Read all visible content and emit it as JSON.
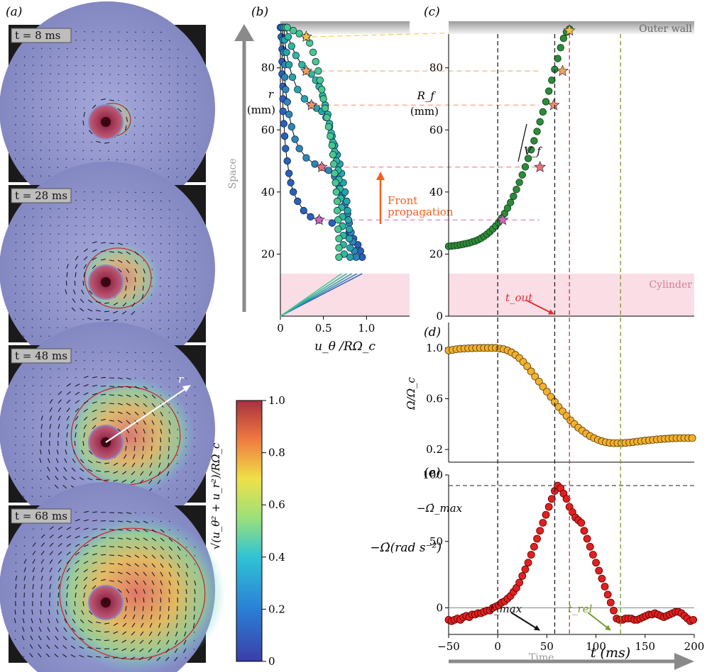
{
  "panel_labels": [
    "(a)",
    "(b)",
    "(c)",
    "(d)",
    "(e)"
  ],
  "snapshots": [
    {
      "label": "t = 8 ms",
      "front_radius": 0.12,
      "color_intensity": 0.35
    },
    {
      "label": "t = 28 ms",
      "front_radius": 0.22,
      "color_intensity": 0.55
    },
    {
      "label": "t = 48 ms",
      "front_radius": 0.36,
      "color_intensity": 0.7
    },
    {
      "label": "t = 68 ms",
      "front_radius": 0.48,
      "color_intensity": 0.8
    }
  ],
  "r_arrow_label": "r",
  "colorbar": {
    "ticks": [
      "1.0",
      "0.8",
      "0.6",
      "0.4",
      "0.2",
      "0"
    ],
    "label": "√(u_θ² + u_r²)/RΩ_c"
  },
  "annotations": {
    "space": "Space",
    "time": "Time",
    "outer_wall": "Outer wall",
    "cylinder": "Cylinder",
    "front_line1": "Front",
    "front_line2": "propagation",
    "t_out": "t_out",
    "t_max": "t_max",
    "t_rel": "t_rel",
    "v_f": "V_f",
    "omega_dot_max": "−Ω̇_max"
  },
  "chart_data": [
    {
      "panel": "(b)",
      "type": "scatter",
      "xlabel": "u_θ /RΩ_c",
      "ylabel": "r (mm)",
      "xlim": [
        0,
        1.5
      ],
      "ylim": [
        0,
        95
      ],
      "xticks": [
        "0",
        "0.5",
        "1.0"
      ],
      "yticks": [
        "20",
        "40",
        "60",
        "80"
      ],
      "profiles": [
        {
          "color": "#2b5fb8",
          "r_front": 31,
          "points": [
            [
              0.0,
              93
            ],
            [
              0.01,
              90
            ],
            [
              0.02,
              86
            ],
            [
              0.02,
              82
            ],
            [
              0.02,
              78
            ],
            [
              0.03,
              74
            ],
            [
              0.03,
              70
            ],
            [
              0.03,
              66
            ],
            [
              0.04,
              62
            ],
            [
              0.05,
              58
            ],
            [
              0.06,
              54
            ],
            [
              0.08,
              50
            ],
            [
              0.1,
              46
            ],
            [
              0.12,
              43
            ],
            [
              0.15,
              40
            ],
            [
              0.2,
              37
            ],
            [
              0.27,
              34
            ],
            [
              0.35,
              32
            ],
            [
              0.45,
              31
            ],
            [
              0.6,
              30
            ],
            [
              0.72,
              29
            ],
            [
              0.8,
              27
            ],
            [
              0.85,
              25
            ],
            [
              0.9,
              23
            ],
            [
              0.93,
              21
            ],
            [
              0.95,
              19
            ]
          ]
        },
        {
          "color": "#2f86b5",
          "r_front": 48,
          "points": [
            [
              0.02,
              93
            ],
            [
              0.03,
              89
            ],
            [
              0.04,
              85
            ],
            [
              0.05,
              81
            ],
            [
              0.05,
              77
            ],
            [
              0.06,
              73
            ],
            [
              0.08,
              69
            ],
            [
              0.1,
              65
            ],
            [
              0.13,
              61
            ],
            [
              0.17,
              57
            ],
            [
              0.22,
              54
            ],
            [
              0.3,
              51
            ],
            [
              0.4,
              49
            ],
            [
              0.48,
              48
            ],
            [
              0.56,
              47
            ],
            [
              0.63,
              45
            ],
            [
              0.68,
              42
            ],
            [
              0.72,
              39
            ],
            [
              0.75,
              36
            ],
            [
              0.78,
              33
            ],
            [
              0.8,
              30
            ],
            [
              0.82,
              27
            ],
            [
              0.84,
              24
            ],
            [
              0.86,
              21
            ],
            [
              0.88,
              19
            ]
          ]
        },
        {
          "color": "#28a5a7",
          "r_front": 68,
          "points": [
            [
              0.04,
              93
            ],
            [
              0.05,
              89
            ],
            [
              0.07,
              85
            ],
            [
              0.1,
              81
            ],
            [
              0.14,
              77
            ],
            [
              0.2,
              73
            ],
            [
              0.28,
              70
            ],
            [
              0.36,
              68
            ],
            [
              0.42,
              67
            ],
            [
              0.48,
              66
            ],
            [
              0.53,
              64
            ],
            [
              0.57,
              61
            ],
            [
              0.6,
              58
            ],
            [
              0.63,
              55
            ],
            [
              0.66,
              52
            ],
            [
              0.69,
              49
            ],
            [
              0.71,
              46
            ],
            [
              0.73,
              43
            ],
            [
              0.75,
              40
            ],
            [
              0.77,
              37
            ],
            [
              0.78,
              34
            ],
            [
              0.79,
              31
            ],
            [
              0.8,
              28
            ],
            [
              0.8,
              25
            ],
            [
              0.81,
              22
            ],
            [
              0.81,
              19
            ]
          ]
        },
        {
          "color": "#2fb99a",
          "r_front": 79,
          "points": [
            [
              0.06,
              93
            ],
            [
              0.09,
              90
            ],
            [
              0.13,
              87
            ],
            [
              0.18,
              84
            ],
            [
              0.25,
              81
            ],
            [
              0.3,
              79
            ],
            [
              0.36,
              78
            ],
            [
              0.41,
              76
            ],
            [
              0.45,
              74
            ],
            [
              0.49,
              71
            ],
            [
              0.52,
              68
            ],
            [
              0.55,
              65
            ],
            [
              0.57,
              62
            ],
            [
              0.59,
              59
            ],
            [
              0.61,
              56
            ],
            [
              0.63,
              53
            ],
            [
              0.65,
              50
            ],
            [
              0.67,
              47
            ],
            [
              0.68,
              44
            ],
            [
              0.69,
              41
            ],
            [
              0.7,
              38
            ],
            [
              0.71,
              35
            ],
            [
              0.72,
              32
            ],
            [
              0.72,
              29
            ],
            [
              0.73,
              26
            ],
            [
              0.73,
              23
            ],
            [
              0.74,
              20
            ]
          ]
        },
        {
          "color": "#47c98a",
          "r_front": 90,
          "points": [
            [
              0.08,
              93
            ],
            [
              0.15,
              92
            ],
            [
              0.22,
              91
            ],
            [
              0.3,
              90
            ],
            [
              0.34,
              88
            ],
            [
              0.38,
              85
            ],
            [
              0.41,
              82
            ],
            [
              0.44,
              79
            ],
            [
              0.46,
              76
            ],
            [
              0.48,
              73
            ],
            [
              0.5,
              70
            ],
            [
              0.52,
              67
            ],
            [
              0.54,
              64
            ],
            [
              0.56,
              61
            ],
            [
              0.58,
              58
            ],
            [
              0.6,
              55
            ],
            [
              0.61,
              52
            ],
            [
              0.62,
              49
            ],
            [
              0.63,
              46
            ],
            [
              0.64,
              43
            ],
            [
              0.65,
              40
            ],
            [
              0.66,
              37
            ],
            [
              0.66,
              34
            ],
            [
              0.67,
              31
            ],
            [
              0.67,
              28
            ],
            [
              0.68,
              25
            ],
            [
              0.68,
              22
            ],
            [
              0.68,
              19
            ]
          ]
        }
      ]
    },
    {
      "panel": "(c)",
      "type": "scatter",
      "ylabel": "R_f (mm)",
      "ylim": [
        0,
        95
      ],
      "yticks": [
        "0",
        "20",
        "40",
        "60",
        "80"
      ],
      "x": [
        -50,
        -47,
        -44,
        -41,
        -38,
        -35,
        -32,
        -29,
        -26,
        -23,
        -20,
        -17,
        -14,
        -11,
        -8,
        -5,
        -2,
        1,
        4,
        7,
        10,
        13,
        16,
        19,
        22,
        25,
        28,
        31,
        34,
        37,
        40,
        43,
        46,
        49,
        52,
        55,
        58,
        61,
        64,
        67,
        70,
        73
      ],
      "values": [
        22.5,
        22.6,
        22.7,
        22.8,
        23,
        23.2,
        23.4,
        23.6,
        23.9,
        24.2,
        24.6,
        25.1,
        25.7,
        26.4,
        27.2,
        28.1,
        29.1,
        30.2,
        31.6,
        33.1,
        34.8,
        36.6,
        38.6,
        40.8,
        43.1,
        45.5,
        48.1,
        50.8,
        53.6,
        56.5,
        59.5,
        62.6,
        65.8,
        69.1,
        72.5,
        76,
        79.5,
        83,
        86.5,
        89.5,
        91.5,
        92.5
      ],
      "stars": [
        {
          "x": 5,
          "y": 31
        },
        {
          "x": 43,
          "y": 48
        },
        {
          "x": 57,
          "y": 68
        },
        {
          "x": 66,
          "y": 79
        },
        {
          "x": 73,
          "y": 92
        }
      ]
    },
    {
      "panel": "(d)",
      "type": "scatter",
      "ylabel": "Ω/Ω_c",
      "ylim": [
        0.1,
        1.2
      ],
      "yticks": [
        "0.2",
        "0.6",
        "1.0"
      ],
      "x": [
        -50,
        -46,
        -42,
        -38,
        -34,
        -30,
        -26,
        -22,
        -18,
        -14,
        -10,
        -6,
        -2,
        2,
        6,
        10,
        14,
        18,
        22,
        26,
        30,
        34,
        38,
        42,
        46,
        50,
        54,
        58,
        62,
        66,
        70,
        74,
        78,
        82,
        86,
        90,
        94,
        98,
        102,
        106,
        110,
        114,
        118,
        122,
        126,
        130,
        134,
        138,
        142,
        146,
        150,
        154,
        158,
        162,
        166,
        170,
        174,
        178,
        182,
        186,
        190,
        194,
        198
      ],
      "values": [
        0.98,
        0.985,
        0.99,
        0.993,
        0.995,
        0.997,
        0.998,
        0.999,
        1,
        1,
        1,
        1,
        1,
        0.995,
        0.99,
        0.98,
        0.965,
        0.945,
        0.92,
        0.89,
        0.855,
        0.815,
        0.775,
        0.735,
        0.695,
        0.655,
        0.615,
        0.575,
        0.535,
        0.5,
        0.465,
        0.43,
        0.4,
        0.372,
        0.348,
        0.325,
        0.305,
        0.29,
        0.276,
        0.265,
        0.257,
        0.252,
        0.25,
        0.25,
        0.25,
        0.252,
        0.255,
        0.258,
        0.262,
        0.266,
        0.27,
        0.273,
        0.276,
        0.279,
        0.282,
        0.284,
        0.286,
        0.288,
        0.289,
        0.29,
        0.29,
        0.29,
        0.29
      ]
    },
    {
      "panel": "(e)",
      "type": "scatter",
      "xlabel": "t (ms)",
      "ylabel": "−Ω̇(rad s⁻²)",
      "xlim": [
        -50,
        200
      ],
      "ylim": [
        -20,
        100
      ],
      "xticks": [
        "−50",
        "0",
        "50",
        "100",
        "150",
        "200"
      ],
      "yticks": [
        "0",
        "50",
        "100"
      ],
      "omega_dot_max": 92,
      "x": [
        -50,
        -47,
        -44,
        -41,
        -38,
        -35,
        -32,
        -29,
        -26,
        -23,
        -20,
        -17,
        -14,
        -11,
        -8,
        -5,
        -2,
        1,
        4,
        7,
        10,
        13,
        16,
        19,
        22,
        25,
        28,
        31,
        34,
        37,
        40,
        43,
        46,
        49,
        52,
        55,
        58,
        61,
        64,
        67,
        70,
        73,
        76,
        79,
        82,
        85,
        88,
        91,
        94,
        97,
        100,
        103,
        106,
        109,
        112,
        115,
        118,
        121,
        124,
        127,
        130,
        133,
        136,
        139,
        142,
        145,
        148,
        151,
        154,
        157,
        160,
        163,
        166,
        169,
        172,
        175,
        178,
        181,
        184,
        187,
        190,
        193,
        196,
        199
      ],
      "values": [
        -9,
        -10,
        -9,
        -8,
        -9,
        -7,
        -6,
        -7,
        -5,
        -5,
        -4,
        -4,
        -3,
        -2,
        -2,
        0,
        1,
        2,
        4,
        5,
        7,
        9,
        12,
        15,
        19,
        24,
        29,
        34,
        40,
        46,
        52,
        58,
        64,
        70,
        76,
        82,
        88,
        92,
        90,
        86,
        82,
        76,
        72,
        68,
        66,
        64,
        58,
        52,
        46,
        40,
        34,
        28,
        22,
        16,
        10,
        4,
        -2,
        -8,
        -9,
        -9,
        -8,
        -8,
        -8,
        -9,
        -9,
        -8,
        -7,
        -6,
        -5,
        -5,
        -4,
        -5,
        -6,
        -7,
        -6,
        -5,
        -4,
        -3,
        -3,
        -4,
        -6,
        -8,
        -10,
        -9
      ]
    }
  ],
  "vertical_markers": [
    {
      "name": "t0",
      "x": 0,
      "color": "#222222"
    },
    {
      "name": "t_max",
      "x": 58,
      "color": "#222222"
    },
    {
      "name": "t_out",
      "x": 73,
      "color": "#e03030"
    },
    {
      "name": "t_rel",
      "x": 125,
      "color": "#7a9a30"
    }
  ]
}
